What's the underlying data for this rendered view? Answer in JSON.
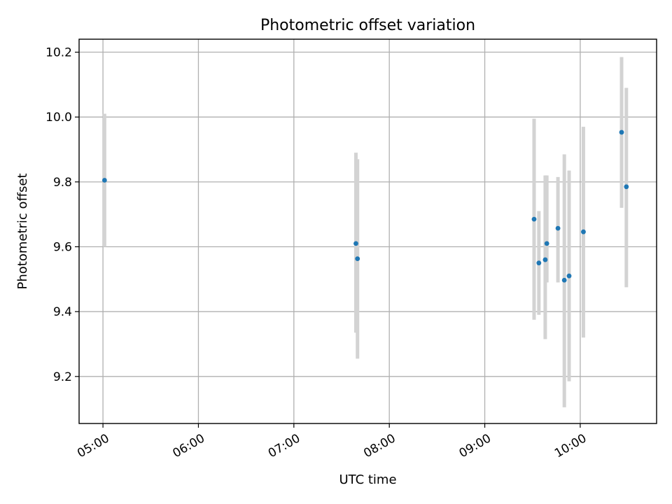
{
  "chart_data": {
    "type": "scatter",
    "title": "Photometric offset variation",
    "xlabel": "UTC time",
    "ylabel": "Photometric offset",
    "x_ticks": [
      "05:00",
      "06:00",
      "07:00",
      "08:00",
      "09:00",
      "10:00"
    ],
    "y_ticks": [
      "9.2",
      "9.4",
      "9.6",
      "9.8",
      "10.0",
      "10.2"
    ],
    "xlim": [
      "04:45",
      "10:48"
    ],
    "ylim": [
      9.055,
      10.24
    ],
    "grid": true,
    "series": [
      {
        "x": [
          "05:01",
          "07:39",
          "07:40",
          "09:31",
          "09:34",
          "09:38",
          "09:39",
          "09:46",
          "09:50",
          "09:53",
          "10:02",
          "10:26",
          "10:29"
        ],
        "y": [
          9.805,
          9.61,
          9.563,
          9.685,
          9.55,
          9.56,
          9.61,
          9.657,
          9.497,
          9.51,
          9.646,
          9.953,
          9.785
        ],
        "err_low": [
          9.6,
          9.335,
          9.255,
          9.375,
          9.39,
          9.315,
          9.49,
          9.49,
          9.105,
          9.185,
          9.32,
          9.72,
          9.475
        ],
        "err_high": [
          10.01,
          9.89,
          9.87,
          9.995,
          9.71,
          9.82,
          9.82,
          9.815,
          9.885,
          9.835,
          9.97,
          10.185,
          10.09
        ]
      }
    ]
  }
}
